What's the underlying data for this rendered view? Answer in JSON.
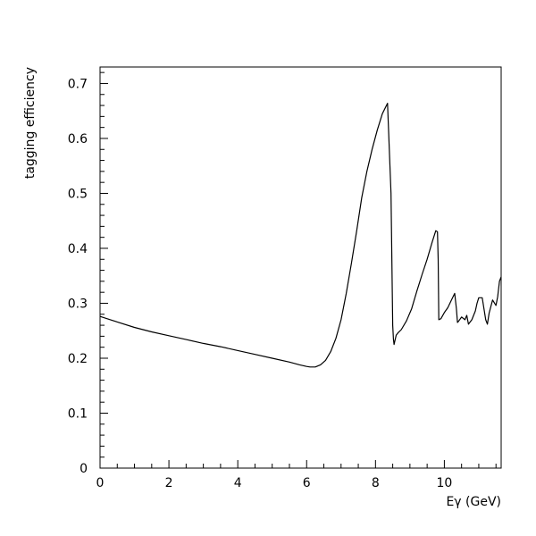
{
  "chart_data": {
    "type": "line",
    "title": "",
    "xlabel": "Eγ (GeV)",
    "ylabel": "tagging efficiency",
    "xlim": [
      0,
      11.65
    ],
    "ylim": [
      0,
      0.73
    ],
    "x_ticks": [
      0,
      2,
      4,
      6,
      8,
      10
    ],
    "x_tick_labels": [
      "0",
      "2",
      "4",
      "6",
      "8",
      "10"
    ],
    "y_ticks": [
      0,
      0.1,
      0.2,
      0.3,
      0.4,
      0.5,
      0.6,
      0.7
    ],
    "y_tick_labels": [
      "0",
      "0.1",
      "0.2",
      "0.3",
      "0.4",
      "0.5",
      "0.6",
      "0.7"
    ],
    "grid": false,
    "legend": "none",
    "line_color": "#000000",
    "series": [
      {
        "x": [
          0,
          0.5,
          1.0,
          1.5,
          2.0,
          2.5,
          3.0,
          3.5,
          4.0,
          4.5,
          5.0,
          5.5,
          5.8,
          6.0,
          6.1,
          6.25,
          6.4,
          6.55,
          6.7,
          6.85,
          7.0,
          7.15,
          7.3,
          7.45,
          7.6,
          7.75,
          7.9,
          8.05,
          8.2,
          8.35,
          8.45,
          8.5,
          8.52,
          8.54,
          8.6,
          8.65,
          8.75,
          8.9,
          9.05,
          9.2,
          9.35,
          9.5,
          9.65,
          9.75,
          9.8,
          9.82,
          9.84,
          9.9,
          10.0,
          10.1,
          10.2,
          10.3,
          10.35,
          10.38,
          10.42,
          10.5,
          10.6,
          10.65,
          10.7,
          10.8,
          10.9,
          10.95,
          11.0,
          11.1,
          11.2,
          11.25,
          11.3,
          11.4,
          11.5,
          11.55,
          11.6,
          11.65
        ],
        "y": [
          0.276,
          0.266,
          0.256,
          0.248,
          0.241,
          0.234,
          0.227,
          0.221,
          0.214,
          0.207,
          0.2,
          0.193,
          0.188,
          0.185,
          0.184,
          0.184,
          0.188,
          0.196,
          0.212,
          0.236,
          0.27,
          0.318,
          0.372,
          0.43,
          0.492,
          0.54,
          0.58,
          0.615,
          0.645,
          0.664,
          0.5,
          0.26,
          0.235,
          0.225,
          0.242,
          0.246,
          0.252,
          0.268,
          0.29,
          0.322,
          0.352,
          0.38,
          0.412,
          0.432,
          0.43,
          0.38,
          0.27,
          0.272,
          0.283,
          0.292,
          0.305,
          0.318,
          0.29,
          0.265,
          0.268,
          0.275,
          0.27,
          0.278,
          0.262,
          0.27,
          0.286,
          0.3,
          0.31,
          0.31,
          0.27,
          0.262,
          0.282,
          0.306,
          0.296,
          0.312,
          0.34,
          0.348
        ]
      }
    ]
  }
}
